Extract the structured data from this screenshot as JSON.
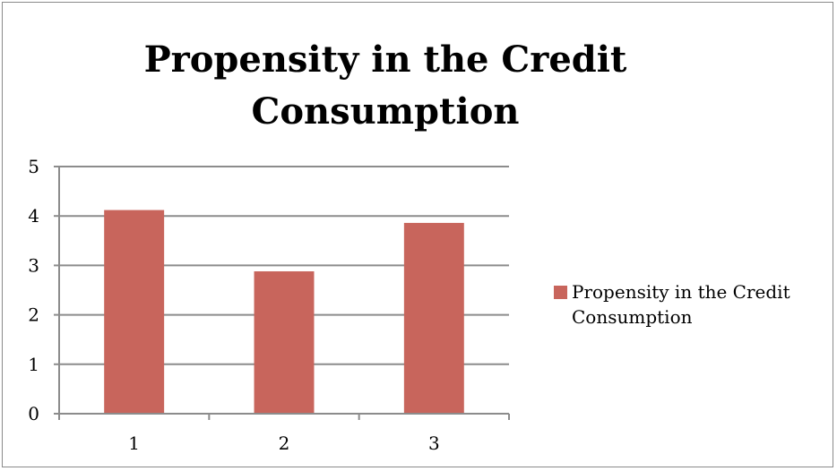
{
  "chart_data": {
    "type": "bar",
    "title": "Propensity in the Credit Consumption",
    "categories": [
      "1",
      "2",
      "3"
    ],
    "series": [
      {
        "name": "Propensity in the Credit Consumption",
        "values": [
          4.12,
          2.88,
          3.86
        ],
        "color": "#c8655c"
      }
    ],
    "ylim": [
      0,
      5
    ],
    "yticks": [
      "0",
      "1",
      "2",
      "3",
      "4",
      "5"
    ],
    "grid": true,
    "legend": "right"
  }
}
